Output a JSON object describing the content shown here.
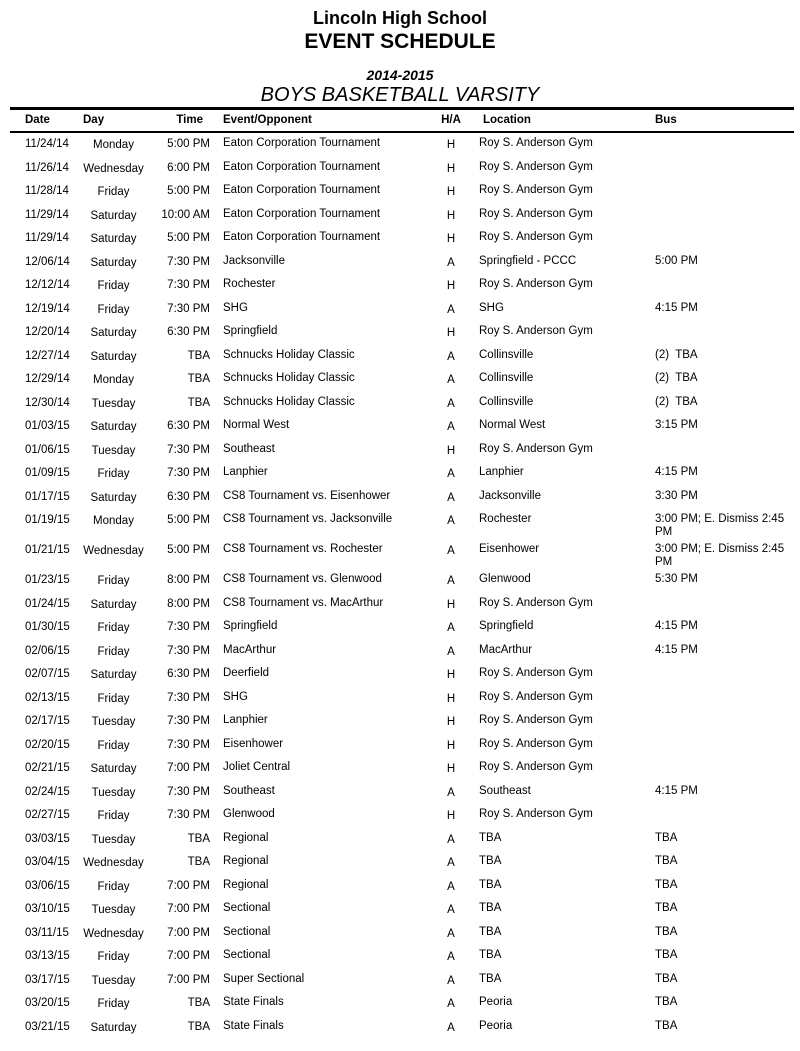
{
  "title": {
    "school": "Lincoln High School",
    "schedule": "EVENT SCHEDULE",
    "season": "2014-2015",
    "team": "BOYS BASKETBALL VARSITY"
  },
  "table": {
    "columns": {
      "date": "Date",
      "day": "Day",
      "time": "Time",
      "event": "Event/Opponent",
      "ha": "H/A",
      "location": "Location",
      "bus": "Bus"
    },
    "rows": [
      {
        "date": "11/24/14",
        "day": "Monday",
        "time": "5:00 PM",
        "event": "Eaton Corporation Tournament",
        "ha": "H",
        "location": "Roy S. Anderson Gym",
        "bus": ""
      },
      {
        "date": "11/26/14",
        "day": "Wednesday",
        "time": "6:00 PM",
        "event": "Eaton Corporation Tournament",
        "ha": "H",
        "location": "Roy S. Anderson Gym",
        "bus": ""
      },
      {
        "date": "11/28/14",
        "day": "Friday",
        "time": "5:00 PM",
        "event": "Eaton Corporation Tournament",
        "ha": "H",
        "location": "Roy S. Anderson Gym",
        "bus": ""
      },
      {
        "date": "11/29/14",
        "day": "Saturday",
        "time": "10:00 AM",
        "event": "Eaton Corporation Tournament",
        "ha": "H",
        "location": "Roy S. Anderson Gym",
        "bus": ""
      },
      {
        "date": "11/29/14",
        "day": "Saturday",
        "time": "5:00 PM",
        "event": "Eaton Corporation Tournament",
        "ha": "H",
        "location": "Roy S. Anderson Gym",
        "bus": ""
      },
      {
        "date": "12/06/14",
        "day": "Saturday",
        "time": "7:30 PM",
        "event": "Jacksonville",
        "ha": "A",
        "location": "Springfield - PCCC",
        "bus": "5:00 PM"
      },
      {
        "date": "12/12/14",
        "day": "Friday",
        "time": "7:30 PM",
        "event": "Rochester",
        "ha": "H",
        "location": "Roy S. Anderson Gym",
        "bus": ""
      },
      {
        "date": "12/19/14",
        "day": "Friday",
        "time": "7:30 PM",
        "event": "SHG",
        "ha": "A",
        "location": "SHG",
        "bus": "4:15 PM"
      },
      {
        "date": "12/20/14",
        "day": "Saturday",
        "time": "6:30 PM",
        "event": "Springfield",
        "ha": "H",
        "location": "Roy S. Anderson Gym",
        "bus": ""
      },
      {
        "date": "12/27/14",
        "day": "Saturday",
        "time": "TBA",
        "event": "Schnucks Holiday Classic",
        "ha": "A",
        "location": "Collinsville",
        "bus": "(2)  TBA"
      },
      {
        "date": "12/29/14",
        "day": "Monday",
        "time": "TBA",
        "event": "Schnucks Holiday Classic",
        "ha": "A",
        "location": "Collinsville",
        "bus": "(2)  TBA"
      },
      {
        "date": "12/30/14",
        "day": "Tuesday",
        "time": "TBA",
        "event": "Schnucks Holiday Classic",
        "ha": "A",
        "location": "Collinsville",
        "bus": "(2)  TBA"
      },
      {
        "date": "01/03/15",
        "day": "Saturday",
        "time": "6:30 PM",
        "event": "Normal West",
        "ha": "A",
        "location": "Normal West",
        "bus": "3:15 PM"
      },
      {
        "date": "01/06/15",
        "day": "Tuesday",
        "time": "7:30 PM",
        "event": "Southeast",
        "ha": "H",
        "location": "Roy S. Anderson Gym",
        "bus": ""
      },
      {
        "date": "01/09/15",
        "day": "Friday",
        "time": "7:30 PM",
        "event": "Lanphier",
        "ha": "A",
        "location": "Lanphier",
        "bus": "4:15 PM"
      },
      {
        "date": "01/17/15",
        "day": "Saturday",
        "time": "6:30 PM",
        "event": "CS8 Tournament vs. Eisenhower",
        "ha": "A",
        "location": "Jacksonville",
        "bus": "3:30 PM"
      },
      {
        "date": "01/19/15",
        "day": "Monday",
        "time": "5:00 PM",
        "event": "CS8 Tournament vs. Jacksonville",
        "ha": "A",
        "location": "Rochester",
        "bus": "3:00 PM; E. Dismiss 2:45 PM"
      },
      {
        "date": "01/21/15",
        "day": "Wednesday",
        "time": "5:00 PM",
        "event": "CS8 Tournament vs. Rochester",
        "ha": "A",
        "location": "Eisenhower",
        "bus": "3:00 PM; E. Dismiss 2:45 PM"
      },
      {
        "date": "01/23/15",
        "day": "Friday",
        "time": "8:00 PM",
        "event": "CS8 Tournament vs. Glenwood",
        "ha": "A",
        "location": "Glenwood",
        "bus": "5:30 PM"
      },
      {
        "date": "01/24/15",
        "day": "Saturday",
        "time": "8:00 PM",
        "event": "CS8 Tournament vs. MacArthur",
        "ha": "H",
        "location": "Roy S. Anderson Gym",
        "bus": ""
      },
      {
        "date": "01/30/15",
        "day": "Friday",
        "time": "7:30 PM",
        "event": "Springfield",
        "ha": "A",
        "location": "Springfield",
        "bus": "4:15 PM"
      },
      {
        "date": "02/06/15",
        "day": "Friday",
        "time": "7:30 PM",
        "event": "MacArthur",
        "ha": "A",
        "location": "MacArthur",
        "bus": "4:15 PM"
      },
      {
        "date": "02/07/15",
        "day": "Saturday",
        "time": "6:30 PM",
        "event": "Deerfield",
        "ha": "H",
        "location": "Roy S. Anderson Gym",
        "bus": ""
      },
      {
        "date": "02/13/15",
        "day": "Friday",
        "time": "7:30 PM",
        "event": "SHG",
        "ha": "H",
        "location": "Roy S. Anderson Gym",
        "bus": ""
      },
      {
        "date": "02/17/15",
        "day": "Tuesday",
        "time": "7:30 PM",
        "event": "Lanphier",
        "ha": "H",
        "location": "Roy S. Anderson Gym",
        "bus": ""
      },
      {
        "date": "02/20/15",
        "day": "Friday",
        "time": "7:30 PM",
        "event": "Eisenhower",
        "ha": "H",
        "location": "Roy S. Anderson Gym",
        "bus": ""
      },
      {
        "date": "02/21/15",
        "day": "Saturday",
        "time": "7:00 PM",
        "event": "Joliet Central",
        "ha": "H",
        "location": "Roy S. Anderson Gym",
        "bus": ""
      },
      {
        "date": "02/24/15",
        "day": "Tuesday",
        "time": "7:30 PM",
        "event": "Southeast",
        "ha": "A",
        "location": "Southeast",
        "bus": "4:15 PM"
      },
      {
        "date": "02/27/15",
        "day": "Friday",
        "time": "7:30 PM",
        "event": "Glenwood",
        "ha": "H",
        "location": "Roy S. Anderson Gym",
        "bus": ""
      },
      {
        "date": "03/03/15",
        "day": "Tuesday",
        "time": "TBA",
        "event": "Regional",
        "ha": "A",
        "location": "TBA",
        "bus": "TBA"
      },
      {
        "date": "03/04/15",
        "day": "Wednesday",
        "time": "TBA",
        "event": "Regional",
        "ha": "A",
        "location": "TBA",
        "bus": "TBA"
      },
      {
        "date": "03/06/15",
        "day": "Friday",
        "time": "7:00 PM",
        "event": "Regional",
        "ha": "A",
        "location": "TBA",
        "bus": "TBA"
      },
      {
        "date": "03/10/15",
        "day": "Tuesday",
        "time": "7:00 PM",
        "event": "Sectional",
        "ha": "A",
        "location": "TBA",
        "bus": "TBA"
      },
      {
        "date": "03/11/15",
        "day": "Wednesday",
        "time": "7:00 PM",
        "event": "Sectional",
        "ha": "A",
        "location": "TBA",
        "bus": "TBA"
      },
      {
        "date": "03/13/15",
        "day": "Friday",
        "time": "7:00 PM",
        "event": "Sectional",
        "ha": "A",
        "location": "TBA",
        "bus": "TBA"
      },
      {
        "date": "03/17/15",
        "day": "Tuesday",
        "time": "7:00 PM",
        "event": "Super Sectional",
        "ha": "A",
        "location": "TBA",
        "bus": "TBA"
      },
      {
        "date": "03/20/15",
        "day": "Friday",
        "time": "TBA",
        "event": "State Finals",
        "ha": "A",
        "location": "Peoria",
        "bus": "TBA"
      },
      {
        "date": "03/21/15",
        "day": "Saturday",
        "time": "TBA",
        "event": "State Finals",
        "ha": "A",
        "location": "Peoria",
        "bus": "TBA"
      }
    ]
  },
  "colors": {
    "text": "#000000",
    "background": "#ffffff",
    "rule": "#000000"
  }
}
